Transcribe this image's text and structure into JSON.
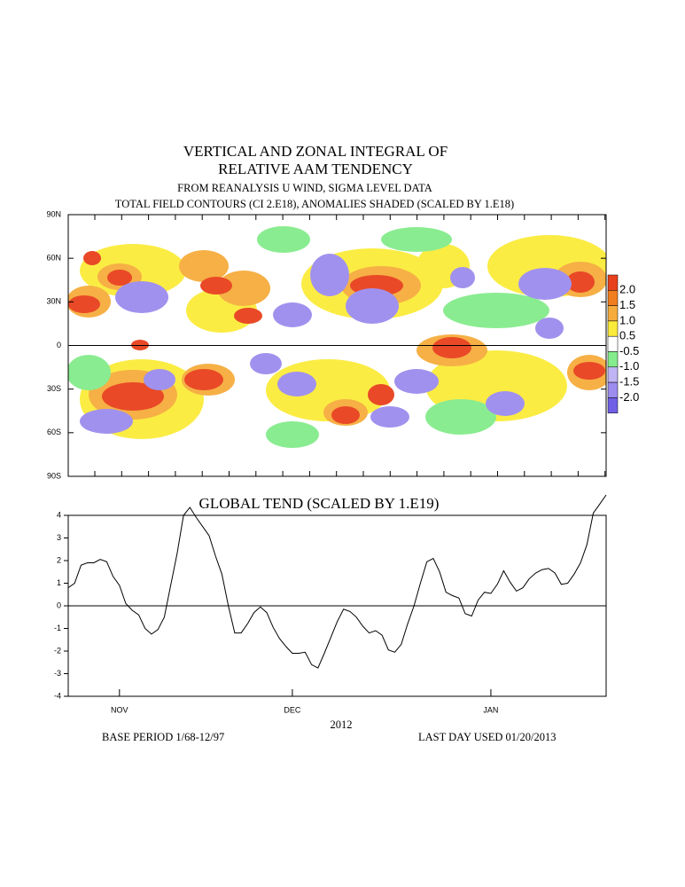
{
  "chart_data": [
    {
      "type": "contour",
      "title": [
        "VERTICAL AND ZONAL INTEGRAL OF",
        "RELATIVE AAM TENDENCY"
      ],
      "subtitle": [
        "FROM REANALYSIS U WIND,  SIGMA LEVEL DATA",
        "TOTAL FIELD CONTOURS (CI 2.E18),  ANOMALIES SHADED (SCALED BY 1.E18)"
      ],
      "ylim": [
        -90,
        90
      ],
      "yticks": [
        {
          "value": 90,
          "label": "90N"
        },
        {
          "value": 60,
          "label": "60N"
        },
        {
          "value": 30,
          "label": "30N"
        },
        0,
        {
          "value": -30,
          "label": "30S"
        },
        {
          "value": -60,
          "label": "60S"
        },
        {
          "value": -90,
          "label": "90S"
        }
      ],
      "colorbar": {
        "levels": [
          {
            "value": 2,
            "label": "2.0"
          },
          1.5,
          {
            "value": 1,
            "label": "1.0"
          },
          0.5,
          -0.5,
          {
            "value": -1,
            "label": "-1.0"
          },
          -1.5,
          {
            "value": -2,
            "label": "-2.0"
          }
        ],
        "colors": [
          "#e8401c",
          "#f07d1e",
          "#f6ac3c",
          "#fbeb3a",
          "#ffffff",
          "#84ec8c",
          "#c0b4f4",
          "#9c8cee",
          "#7060e6"
        ]
      }
    },
    {
      "type": "line",
      "title": "GLOBAL TEND (SCALED BY 1.E19)",
      "xlabel": "2012",
      "categories": [
        null,
        null,
        null,
        null,
        null,
        null,
        null,
        null,
        "NOV",
        null,
        null,
        null,
        null,
        null,
        null,
        null,
        null,
        null,
        null,
        null,
        null,
        null,
        null,
        null,
        null,
        null,
        null,
        null,
        null,
        null,
        null,
        null,
        null,
        null,
        null,
        "DEC",
        null,
        null,
        null,
        null,
        null,
        null,
        null,
        null,
        null,
        null,
        null,
        null,
        null,
        null,
        null,
        null,
        null,
        null,
        null,
        null,
        null,
        null,
        null,
        null,
        null,
        null,
        null,
        null,
        null,
        null,
        "JAN",
        null,
        null,
        null,
        null,
        null,
        null,
        null,
        null,
        null,
        null,
        null,
        null,
        null,
        null,
        null,
        null,
        null,
        null
      ],
      "series": [
        {
          "name": "GLOBAL TEND",
          "color": "#000000",
          "values": [
            0.8,
            1.0,
            1.8,
            1.9,
            1.9,
            2.05,
            1.95,
            1.3,
            0.9,
            0.1,
            -0.2,
            -0.4,
            -1.0,
            -1.25,
            -1.05,
            -0.5,
            0.9,
            2.3,
            4.0,
            4.35,
            3.9,
            3.5,
            3.1,
            2.2,
            1.4,
            0.0,
            -1.2,
            -1.2,
            -0.8,
            -0.3,
            -0.05,
            -0.3,
            -0.95,
            -1.45,
            -1.8,
            -2.1,
            -2.1,
            -2.05,
            -2.6,
            -2.75,
            -2.1,
            -1.4,
            -0.7,
            -0.15,
            -0.25,
            -0.5,
            -0.9,
            -1.2,
            -1.1,
            -1.3,
            -1.95,
            -2.05,
            -1.7,
            -0.8,
            0.0,
            1.0,
            1.95,
            2.1,
            1.5,
            0.6,
            0.45,
            0.35,
            -0.35,
            -0.45,
            0.25,
            0.6,
            0.55,
            0.95,
            1.55,
            1.05,
            0.65,
            0.8,
            1.2,
            1.45,
            1.6,
            1.65,
            1.45,
            0.95,
            1.0,
            1.4,
            1.9,
            2.7,
            4.1,
            4.5,
            4.9
          ]
        }
      ],
      "ylim": [
        -4,
        4
      ],
      "yticks": [
        -4,
        -3,
        -2,
        -1,
        0,
        1,
        2,
        3,
        4
      ],
      "zero_line": true,
      "annotations": [
        "BASE PERIOD  1/68-12/97",
        "LAST DAY USED 01/20/2013"
      ]
    }
  ]
}
